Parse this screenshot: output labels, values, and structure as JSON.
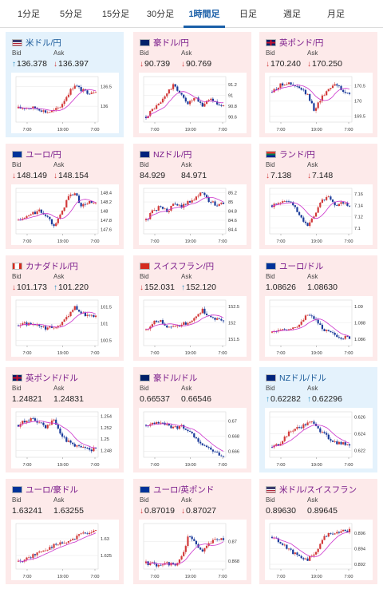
{
  "tabs": [
    "1分足",
    "5分足",
    "15分足",
    "30分足",
    "1時間足",
    "日足",
    "週足",
    "月足"
  ],
  "active_tab": 4,
  "labels": {
    "bid": "Bid",
    "ask": "Ask"
  },
  "colors": {
    "up": "#d23a3a",
    "down": "#1a3a9a",
    "ma": "#cc33cc",
    "arrow_up": "#2a8fc0",
    "arrow_down": "#d23a3a"
  },
  "cards": [
    {
      "pair": "米ドル/円",
      "flag": "us",
      "bid": "136.378",
      "ask": "136.397",
      "bid_dir": "up",
      "ask_dir": "down",
      "highlight": "blue",
      "chart_data": {
        "type": "candlestick",
        "x_ticks": [
          "7:00",
          "19:00",
          "7:00"
        ],
        "y_ticks": [
          "136.5",
          "136"
        ],
        "ylim": [
          135.6,
          136.75
        ],
        "trend": [
          135.95,
          135.97,
          135.96,
          135.93,
          135.85,
          135.88,
          136.0,
          136.3,
          136.55,
          136.4,
          136.35,
          136.4
        ]
      }
    },
    {
      "pair": "豪ドル/円",
      "flag": "au",
      "bid": "90.739",
      "ask": "90.769",
      "bid_dir": "down",
      "ask_dir": "down",
      "highlight": "red",
      "chart_data": {
        "type": "candlestick",
        "x_ticks": [
          "7:00",
          "19:00",
          "7:00"
        ],
        "y_ticks": [
          "91.2",
          "91",
          "90.8",
          "90.6"
        ],
        "ylim": [
          90.5,
          91.35
        ],
        "trend": [
          90.6,
          90.75,
          90.85,
          91.05,
          91.2,
          91.0,
          90.85,
          90.95,
          90.8,
          90.95,
          90.85,
          90.8
        ]
      }
    },
    {
      "pair": "英ポンド/円",
      "flag": "gb",
      "bid": "170.240",
      "ask": "170.250",
      "bid_dir": "down",
      "ask_dir": "down",
      "highlight": "red",
      "chart_data": {
        "type": "candlestick",
        "x_ticks": [
          "7:00",
          "19:00",
          "7:00"
        ],
        "y_ticks": [
          "170.5",
          "170",
          "169.5"
        ],
        "ylim": [
          169.3,
          170.8
        ],
        "trend": [
          170.3,
          170.5,
          170.6,
          170.5,
          170.4,
          170.2,
          169.7,
          170.1,
          170.4,
          170.6,
          170.3,
          170.25
        ]
      }
    },
    {
      "pair": "ユーロ/円",
      "flag": "eu",
      "bid": "148.149",
      "ask": "148.154",
      "bid_dir": "down",
      "ask_dir": "down",
      "highlight": "red",
      "chart_data": {
        "type": "candlestick",
        "x_ticks": [
          "7:00",
          "19:00",
          "7:00"
        ],
        "y_ticks": [
          "148.4",
          "148.2",
          "148",
          "147.8",
          "147.6"
        ],
        "ylim": [
          147.5,
          148.5
        ],
        "trend": [
          147.8,
          147.85,
          147.95,
          148.0,
          147.9,
          147.7,
          147.9,
          148.3,
          148.4,
          148.1,
          148.2,
          148.15
        ]
      }
    },
    {
      "pair": "NZドル/円",
      "flag": "nz",
      "bid": "84.929",
      "ask": "84.971",
      "bid_dir": "none",
      "ask_dir": "none",
      "highlight": "red",
      "chart_data": {
        "type": "candlestick",
        "x_ticks": [
          "7:00",
          "19:00",
          "7:00"
        ],
        "y_ticks": [
          "85.2",
          "85",
          "84.8",
          "84.6",
          "84.4"
        ],
        "ylim": [
          84.3,
          85.3
        ],
        "trend": [
          84.6,
          84.8,
          84.9,
          84.8,
          84.95,
          84.9,
          85.0,
          85.1,
          85.2,
          85.0,
          84.95,
          84.95
        ]
      }
    },
    {
      "pair": "ランド/円",
      "flag": "za",
      "bid": "7.138",
      "ask": "7.148",
      "bid_dir": "down",
      "ask_dir": "down",
      "highlight": "red",
      "chart_data": {
        "type": "candlestick",
        "x_ticks": [
          "7:00",
          "19:00",
          "7:00"
        ],
        "y_ticks": [
          "7.16",
          "7.14",
          "7.12",
          "7.1"
        ],
        "ylim": [
          7.09,
          7.17
        ],
        "trend": [
          7.14,
          7.145,
          7.15,
          7.14,
          7.12,
          7.105,
          7.12,
          7.15,
          7.155,
          7.14,
          7.145,
          7.14
        ]
      }
    },
    {
      "pair": "カナダドル/円",
      "flag": "ca",
      "bid": "101.173",
      "ask": "101.220",
      "bid_dir": "down",
      "ask_dir": "up",
      "highlight": "red",
      "chart_data": {
        "type": "candlestick",
        "x_ticks": [
          "7:00",
          "19:00",
          "7:00"
        ],
        "y_ticks": [
          "101.5",
          "101",
          "100.5"
        ],
        "ylim": [
          100.35,
          101.7
        ],
        "trend": [
          100.95,
          101.0,
          100.95,
          100.9,
          100.85,
          100.9,
          100.95,
          101.2,
          101.5,
          101.3,
          101.25,
          101.2
        ]
      }
    },
    {
      "pair": "スイスフラン/円",
      "flag": "ch",
      "bid": "152.031",
      "ask": "152.120",
      "bid_dir": "down",
      "ask_dir": "up",
      "highlight": "red",
      "chart_data": {
        "type": "candlestick",
        "x_ticks": [
          "7:00",
          "19:00",
          "7:00"
        ],
        "y_ticks": [
          "152.5",
          "152",
          "151.5"
        ],
        "ylim": [
          151.3,
          152.7
        ],
        "trend": [
          151.8,
          152.0,
          152.1,
          151.9,
          151.85,
          151.95,
          152.0,
          152.2,
          152.4,
          152.2,
          152.1,
          152.05
        ]
      }
    },
    {
      "pair": "ユーロ/ドル",
      "flag": "eu",
      "bid": "1.08626",
      "ask": "1.08630",
      "bid_dir": "none",
      "ask_dir": "none",
      "highlight": "red",
      "chart_data": {
        "type": "candlestick",
        "x_ticks": [
          "7:00",
          "19:00",
          "7:00"
        ],
        "y_ticks": [
          "1.09",
          "1.088",
          "1.086"
        ],
        "ylim": [
          1.0852,
          1.0908
        ],
        "trend": [
          1.0868,
          1.087,
          1.0872,
          1.0875,
          1.0878,
          1.089,
          1.0885,
          1.0875,
          1.0868,
          1.0865,
          1.0862,
          1.0862
        ]
      }
    },
    {
      "pair": "英ポンド/ドル",
      "flag": "gb",
      "bid": "1.24821",
      "ask": "1.24831",
      "bid_dir": "none",
      "ask_dir": "none",
      "highlight": "red",
      "chart_data": {
        "type": "candlestick",
        "x_ticks": [
          "7:00",
          "19:00",
          "7:00"
        ],
        "y_ticks": [
          "1.254",
          "1.252",
          "1.25",
          "1.248"
        ],
        "ylim": [
          1.2468,
          1.2548
        ],
        "trend": [
          1.2525,
          1.2532,
          1.2535,
          1.2528,
          1.252,
          1.2535,
          1.251,
          1.2495,
          1.249,
          1.2485,
          1.2482,
          1.2482
        ]
      }
    },
    {
      "pair": "豪ドル/ドル",
      "flag": "au",
      "bid": "0.66537",
      "ask": "0.66546",
      "bid_dir": "none",
      "ask_dir": "none",
      "highlight": "red",
      "chart_data": {
        "type": "candlestick",
        "x_ticks": [
          "7:00",
          "19:00",
          "7:00"
        ],
        "y_ticks": [
          "0.67",
          "0.668",
          "0.666"
        ],
        "ylim": [
          0.6652,
          0.6712
        ],
        "trend": [
          0.6695,
          0.6697,
          0.6698,
          0.6694,
          0.669,
          0.6694,
          0.6688,
          0.6676,
          0.667,
          0.6664,
          0.6658,
          0.6654
        ]
      }
    },
    {
      "pair": "NZドル/ドル",
      "flag": "nz",
      "bid": "0.62282",
      "ask": "0.62296",
      "bid_dir": "up",
      "ask_dir": "up",
      "highlight": "blue",
      "chart_data": {
        "type": "candlestick",
        "x_ticks": [
          "7:00",
          "19:00",
          "7:00"
        ],
        "y_ticks": [
          "0.626",
          "0.624",
          "0.622"
        ],
        "ylim": [
          0.6212,
          0.6266
        ],
        "trend": [
          0.6224,
          0.6228,
          0.6238,
          0.6245,
          0.6248,
          0.6252,
          0.6254,
          0.6242,
          0.6235,
          0.623,
          0.6228,
          0.6228
        ]
      }
    },
    {
      "pair": "ユーロ/豪ドル",
      "flag": "eu",
      "bid": "1.63241",
      "ask": "1.63255",
      "bid_dir": "none",
      "ask_dir": "none",
      "highlight": "red",
      "chart_data": {
        "type": "candlestick",
        "x_ticks": [
          "7:00",
          "19:00",
          "7:00"
        ],
        "y_ticks": [
          "1.63",
          "1.625"
        ],
        "ylim": [
          1.621,
          1.6345
        ],
        "trend": [
          1.6232,
          1.6238,
          1.625,
          1.6262,
          1.627,
          1.628,
          1.6285,
          1.629,
          1.63,
          1.6315,
          1.632,
          1.6324
        ]
      }
    },
    {
      "pair": "ユーロ/英ポンド",
      "flag": "eu",
      "bid": "0.87019",
      "ask": "0.87027",
      "bid_dir": "down",
      "ask_dir": "down",
      "highlight": "red",
      "chart_data": {
        "type": "candlestick",
        "x_ticks": [
          "7:00",
          "19:00",
          "7:00"
        ],
        "y_ticks": [
          "0.87",
          "0.868"
        ],
        "ylim": [
          0.8672,
          0.8718
        ],
        "trend": [
          0.8678,
          0.8677,
          0.8676,
          0.8678,
          0.8676,
          0.8682,
          0.8705,
          0.8698,
          0.869,
          0.8698,
          0.8702,
          0.8702
        ]
      }
    },
    {
      "pair": "米ドル/スイスフラン",
      "flag": "us",
      "bid": "0.89630",
      "ask": "0.89645",
      "bid_dir": "none",
      "ask_dir": "none",
      "highlight": "red",
      "chart_data": {
        "type": "candlestick",
        "x_ticks": [
          "7:00",
          "19:00",
          "7:00"
        ],
        "y_ticks": [
          "0.896",
          "0.894",
          "0.892"
        ],
        "ylim": [
          0.8914,
          0.8972
        ],
        "trend": [
          0.8955,
          0.8948,
          0.8942,
          0.8935,
          0.893,
          0.8926,
          0.8932,
          0.895,
          0.896,
          0.8958,
          0.8963,
          0.8963
        ]
      }
    }
  ]
}
